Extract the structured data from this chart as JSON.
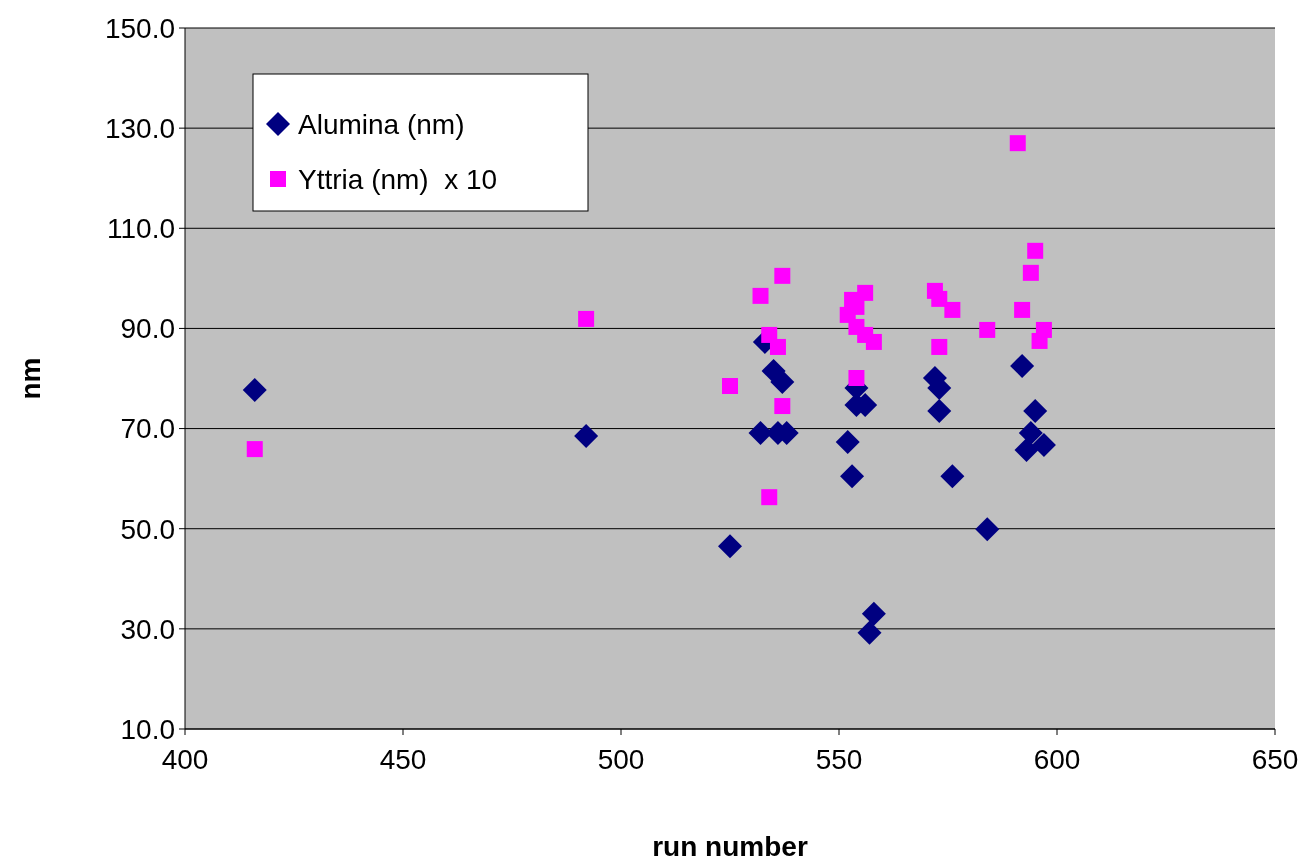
{
  "chart_data": {
    "type": "scatter",
    "xlabel": "run number",
    "ylabel": "nm",
    "xlim": [
      400,
      650
    ],
    "xticks": [
      400,
      450,
      500,
      550,
      600,
      650
    ],
    "ylim": [
      10,
      150
    ],
    "yticks": [
      {
        "value": 10,
        "label": "10.0"
      },
      {
        "value": 30,
        "label": "30.0"
      },
      {
        "value": 50,
        "label": "50.0"
      },
      {
        "value": 70,
        "label": "70.0"
      },
      {
        "value": 90,
        "label": "90.0"
      },
      {
        "value": 110,
        "label": "110.0"
      },
      {
        "value": 130,
        "label": "130.0"
      },
      {
        "value": 150,
        "label": "150.0"
      }
    ],
    "grid": "y",
    "legend": "top left",
    "series": [
      {
        "name": "Alumina (nm)",
        "color": "#000080",
        "marker": "diamond",
        "x": [
          416,
          492,
          525,
          532,
          533,
          535,
          537,
          536,
          538,
          554,
          554,
          556,
          552,
          553,
          558,
          557,
          572,
          573,
          573,
          576,
          584,
          592,
          595,
          594,
          593,
          597
        ],
        "values": [
          77.7,
          68.5,
          46.5,
          69.1,
          87.3,
          81.5,
          79.3,
          69.1,
          69.1,
          78.1,
          74.7,
          74.7,
          67.3,
          60.5,
          33.0,
          29.2,
          80.1,
          78.1,
          73.5,
          60.5,
          49.9,
          82.5,
          73.5,
          69.1,
          65.7,
          66.7
        ]
      },
      {
        "name": "Yttria (nm)  x 10",
        "color": "#ff00ff",
        "marker": "square",
        "x": [
          416,
          492,
          525,
          537,
          532,
          534,
          536,
          537,
          534,
          556,
          553,
          554,
          552,
          554,
          556,
          558,
          554,
          591,
          595,
          594,
          572,
          573,
          576,
          592,
          584,
          597,
          596,
          573
        ],
        "values": [
          65.9,
          91.9,
          78.5,
          100.5,
          96.5,
          88.7,
          86.3,
          74.5,
          56.3,
          97.1,
          95.7,
          94.3,
          92.7,
          90.3,
          88.7,
          87.3,
          80.1,
          127.0,
          105.5,
          101.1,
          97.5,
          95.9,
          93.7,
          93.7,
          89.7,
          89.7,
          87.5,
          86.3
        ]
      }
    ]
  }
}
